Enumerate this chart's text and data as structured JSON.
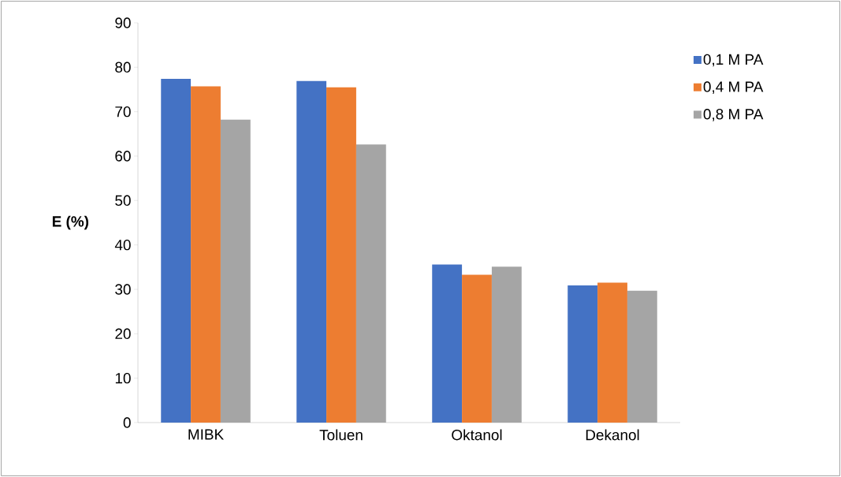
{
  "chart_data": {
    "type": "bar",
    "ylabel": "E (%)",
    "categories": [
      "MIBK",
      "Toluen",
      "Oktanol",
      "Dekanol"
    ],
    "series": [
      {
        "name": "0,1 M PA",
        "color": "#4472c4",
        "values": [
          77.4,
          76.9,
          35.6,
          30.9
        ]
      },
      {
        "name": "0,4 M PA",
        "color": "#ed7d31",
        "values": [
          75.7,
          75.5,
          33.3,
          31.5
        ]
      },
      {
        "name": "0,8 M PA",
        "color": "#a5a5a5",
        "values": [
          68.2,
          62.6,
          35.1,
          29.7
        ]
      }
    ],
    "ylim": [
      0,
      90
    ],
    "yticks": [
      0,
      10,
      20,
      30,
      40,
      50,
      60,
      70,
      80,
      90
    ],
    "grid": false,
    "legend": "top right"
  }
}
